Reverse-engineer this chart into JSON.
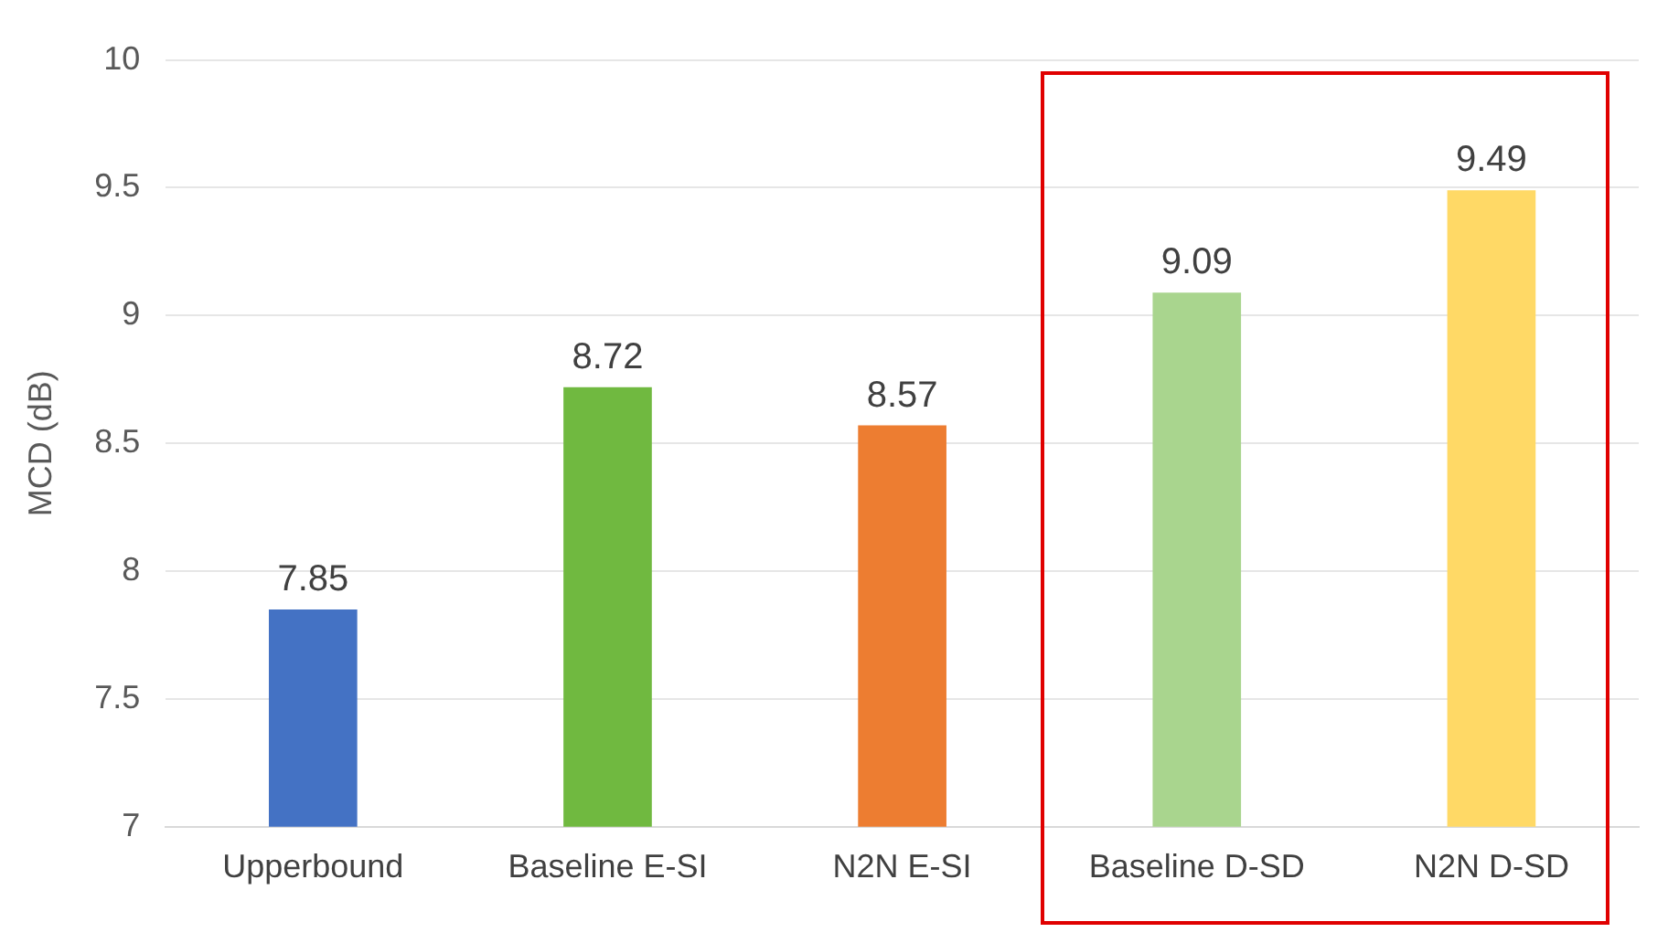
{
  "chart_data": {
    "type": "bar",
    "ylabel": "MCD (dB)",
    "categories": [
      "Upperbound",
      "Baseline E-SI",
      "N2N E-SI",
      "Baseline D-SD",
      "N2N D-SD"
    ],
    "values": [
      7.85,
      8.72,
      8.57,
      9.09,
      9.49
    ],
    "colors": [
      "#4472c4",
      "#70b940",
      "#ed7d31",
      "#a9d58e",
      "#ffd966"
    ],
    "ylim": [
      7,
      10
    ],
    "yticks": [
      7,
      7.5,
      8,
      8.5,
      9,
      9.5,
      10
    ],
    "grid": "y",
    "data_labels": true
  }
}
